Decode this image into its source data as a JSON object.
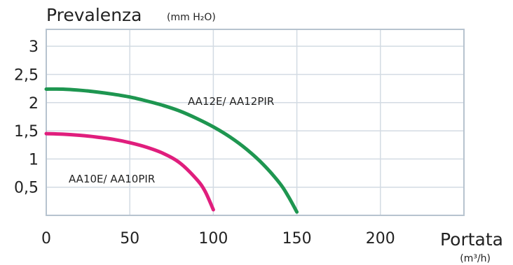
{
  "chart_data": {
    "type": "line",
    "title": "",
    "ylabel": "Prevalenza",
    "ylabel_unit": "(mm H₂O)",
    "xlabel": "Portata",
    "xlabel_unit": "(m³/h)",
    "xlim": [
      0,
      250
    ],
    "ylim": [
      0,
      3.3
    ],
    "x_ticks": [
      0,
      50,
      100,
      150,
      200
    ],
    "x_tick_labels": [
      "0",
      "50",
      "100",
      "150",
      "200"
    ],
    "y_ticks": [
      0.5,
      1,
      1.5,
      2,
      2.5,
      3
    ],
    "y_tick_labels": [
      "0,5",
      "1",
      "1,5",
      "2",
      "2,5",
      "3"
    ],
    "grid": true,
    "series": [
      {
        "name": "AA12E/ AA12PIR",
        "color": "#1e9650",
        "x": [
          0,
          10,
          20,
          30,
          40,
          50,
          60,
          70,
          80,
          90,
          100,
          110,
          120,
          130,
          140,
          145,
          150
        ],
        "y": [
          2.24,
          2.24,
          2.22,
          2.19,
          2.15,
          2.1,
          2.03,
          1.95,
          1.85,
          1.72,
          1.57,
          1.39,
          1.17,
          0.9,
          0.56,
          0.33,
          0.06
        ]
      },
      {
        "name": "AA10E/ AA10PIR",
        "color": "#e01e7d",
        "x": [
          0,
          10,
          20,
          30,
          40,
          50,
          60,
          70,
          80,
          90,
          95,
          100
        ],
        "y": [
          1.45,
          1.44,
          1.42,
          1.39,
          1.35,
          1.29,
          1.21,
          1.1,
          0.93,
          0.64,
          0.43,
          0.1
        ]
      }
    ]
  }
}
